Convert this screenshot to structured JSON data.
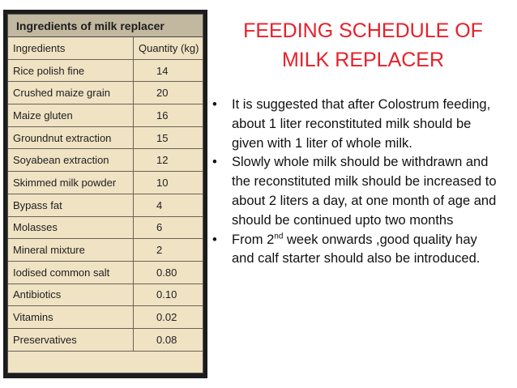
{
  "table": {
    "title": "Ingredients of milk replacer",
    "headers": [
      "Ingredients",
      "Quantity (kg)"
    ],
    "rows": [
      [
        "Rice polish fine",
        "14"
      ],
      [
        "Crushed maize grain",
        "20"
      ],
      [
        "Maize gluten",
        "16"
      ],
      [
        "Groundnut extraction",
        "15"
      ],
      [
        "Soyabean extraction",
        "12"
      ],
      [
        "Skimmed milk powder",
        "10"
      ],
      [
        "Bypass fat",
        "4"
      ],
      [
        "Molasses",
        "6"
      ],
      [
        "Mineral mixture",
        "2"
      ],
      [
        "Iodised common salt",
        "0.80"
      ],
      [
        "Antibiotics",
        "0.10"
      ],
      [
        "Vitamins",
        "0.02"
      ],
      [
        "Preservatives",
        "0.08"
      ]
    ]
  },
  "title": {
    "line1": "FEEDING SCHEDULE OF",
    "line2": "MILK REPLACER"
  },
  "bullets": {
    "b1": "It is suggested that after Colostrum feeding, about 1 liter reconstituted milk should be given with 1 liter of whole milk.",
    "b2": "Slowly whole milk should be withdrawn and the reconstituted milk should be increased to about 2 liters a day, at one month of age and should be continued upto two months",
    "b3_pre": "From 2",
    "b3_sup": "nd",
    "b3_post": " week onwards ,good quality hay and calf starter should also be introduced."
  },
  "colors": {
    "title": "#e8202a",
    "table_bg": "#efe3c4",
    "table_header_bg": "#c2b79f"
  }
}
